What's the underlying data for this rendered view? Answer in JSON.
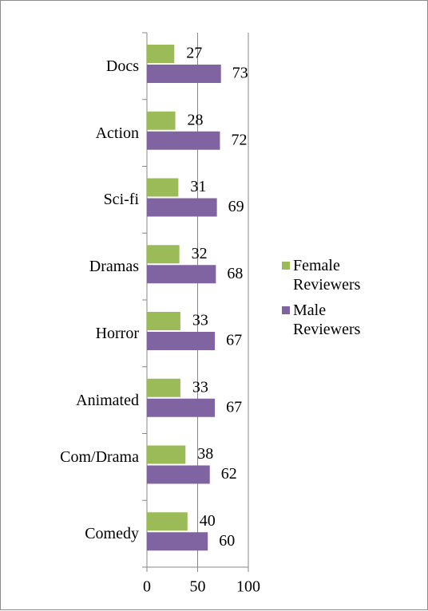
{
  "chart_data": {
    "type": "bar",
    "orientation": "horizontal",
    "categories": [
      "Docs",
      "Action",
      "Sci-fi",
      "Dramas",
      "Horror",
      "Animated",
      "Com/Drama",
      "Comedy"
    ],
    "series": [
      {
        "name": "Female Reviewers",
        "color": "#9bbb59",
        "values": [
          27,
          28,
          31,
          32,
          33,
          33,
          38,
          40
        ]
      },
      {
        "name": "Male Reviewers",
        "color": "#8064a2",
        "values": [
          73,
          72,
          69,
          68,
          67,
          67,
          62,
          60
        ]
      }
    ],
    "xlim": [
      0,
      100
    ],
    "xticks": [
      0,
      50,
      100
    ],
    "grid": true,
    "legend": "right"
  }
}
